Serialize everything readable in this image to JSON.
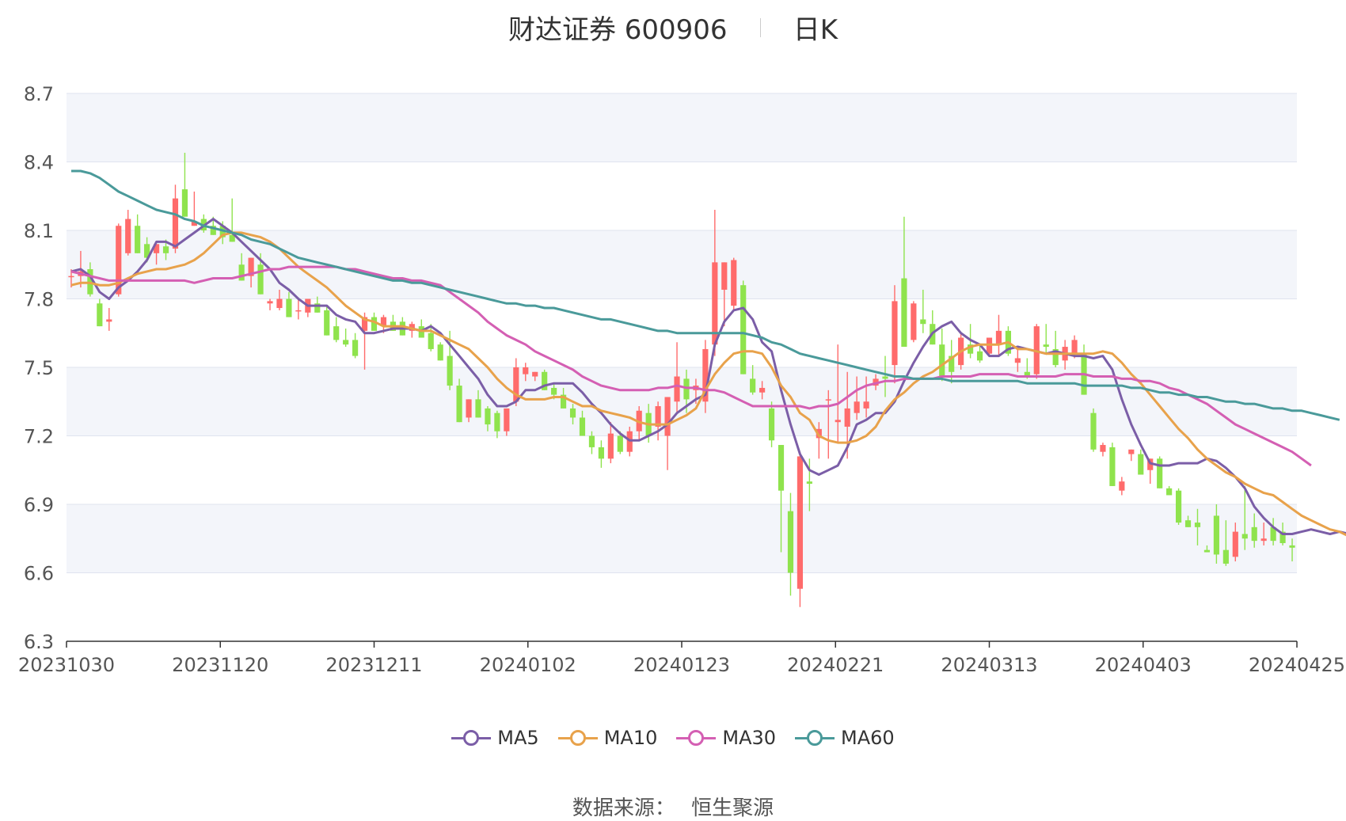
{
  "header": {
    "title": "财达证券 600906",
    "period": "日K"
  },
  "source": {
    "label": "数据来源：",
    "value": "恒生聚源"
  },
  "chart_data": {
    "type": "candlestick",
    "title": "财达证券 600906",
    "subtitle": "日K",
    "ylim": [
      6.3,
      8.7
    ],
    "y_ticks": [
      "6.3",
      "6.6",
      "6.9",
      "7.2",
      "7.5",
      "7.8",
      "8.1",
      "8.4",
      "8.7"
    ],
    "x_tick_labels": [
      "20231030",
      "20231120",
      "20231211",
      "20240102",
      "20240123",
      "20240221",
      "20240313",
      "20240403",
      "20240425"
    ],
    "grid": true,
    "legend_position": "bottom",
    "colors": {
      "up": "#ff6b6b",
      "down": "#8fe34d",
      "grid": "#dfe3ef",
      "band": "#f3f5fa"
    },
    "candles_ohlc": [
      [
        7.9,
        7.93,
        7.85,
        7.9
      ],
      [
        7.9,
        8.01,
        7.85,
        7.92
      ],
      [
        7.93,
        7.96,
        7.81,
        7.82
      ],
      [
        7.78,
        7.8,
        7.68,
        7.68
      ],
      [
        7.7,
        7.76,
        7.66,
        7.71
      ],
      [
        7.82,
        8.13,
        7.81,
        8.12
      ],
      [
        8.0,
        8.19,
        7.99,
        8.15
      ],
      [
        8.12,
        8.17,
        8.0,
        8.0
      ],
      [
        8.04,
        8.07,
        7.96,
        7.98
      ],
      [
        8.0,
        8.04,
        7.95,
        8.04
      ],
      [
        8.03,
        8.06,
        7.97,
        8.0
      ],
      [
        8.02,
        8.3,
        8.0,
        8.24
      ],
      [
        8.28,
        8.44,
        8.16,
        8.16
      ],
      [
        8.12,
        8.27,
        8.12,
        8.14
      ],
      [
        8.15,
        8.17,
        8.09,
        8.1
      ],
      [
        8.12,
        8.16,
        8.08,
        8.08
      ],
      [
        8.12,
        8.14,
        8.04,
        8.07
      ],
      [
        8.08,
        8.24,
        8.06,
        8.05
      ],
      [
        7.95,
        8.0,
        7.88,
        7.88
      ],
      [
        7.9,
        7.98,
        7.85,
        7.98
      ],
      [
        7.95,
        8.0,
        7.82,
        7.82
      ],
      [
        7.78,
        7.8,
        7.75,
        7.79
      ],
      [
        7.76,
        7.84,
        7.75,
        7.8
      ],
      [
        7.8,
        7.83,
        7.72,
        7.72
      ],
      [
        7.75,
        7.8,
        7.71,
        7.75
      ],
      [
        7.74,
        7.8,
        7.72,
        7.8
      ],
      [
        7.78,
        7.81,
        7.74,
        7.74
      ],
      [
        7.75,
        7.77,
        7.64,
        7.64
      ],
      [
        7.68,
        7.72,
        7.61,
        7.62
      ],
      [
        7.62,
        7.67,
        7.59,
        7.6
      ],
      [
        7.62,
        7.65,
        7.54,
        7.55
      ],
      [
        7.66,
        7.74,
        7.49,
        7.72
      ],
      [
        7.72,
        7.74,
        7.66,
        7.66
      ],
      [
        7.68,
        7.73,
        7.65,
        7.72
      ],
      [
        7.7,
        7.73,
        7.66,
        7.66
      ],
      [
        7.7,
        7.72,
        7.64,
        7.64
      ],
      [
        7.66,
        7.7,
        7.63,
        7.69
      ],
      [
        7.68,
        7.71,
        7.63,
        7.63
      ],
      [
        7.65,
        7.69,
        7.57,
        7.58
      ],
      [
        7.6,
        7.61,
        7.53,
        7.53
      ],
      [
        7.55,
        7.66,
        7.4,
        7.42
      ],
      [
        7.42,
        7.45,
        7.3,
        7.26
      ],
      [
        7.28,
        7.36,
        7.26,
        7.36
      ],
      [
        7.36,
        7.4,
        7.28,
        7.28
      ],
      [
        7.32,
        7.33,
        7.22,
        7.25
      ],
      [
        7.3,
        7.31,
        7.19,
        7.22
      ],
      [
        7.22,
        7.31,
        7.2,
        7.32
      ],
      [
        7.35,
        7.54,
        7.33,
        7.5
      ],
      [
        7.47,
        7.52,
        7.44,
        7.5
      ],
      [
        7.46,
        7.48,
        7.44,
        7.48
      ],
      [
        7.48,
        7.49,
        7.4,
        7.4
      ],
      [
        7.41,
        7.43,
        7.36,
        7.38
      ],
      [
        7.38,
        7.41,
        7.32,
        7.32
      ],
      [
        7.32,
        7.34,
        7.25,
        7.28
      ],
      [
        7.28,
        7.31,
        7.2,
        7.2
      ],
      [
        7.2,
        7.22,
        7.12,
        7.15
      ],
      [
        7.15,
        7.18,
        7.06,
        7.1
      ],
      [
        7.1,
        7.26,
        7.08,
        7.21
      ],
      [
        7.2,
        7.22,
        7.12,
        7.13
      ],
      [
        7.13,
        7.24,
        7.11,
        7.22
      ],
      [
        7.22,
        7.33,
        7.18,
        7.31
      ],
      [
        7.3,
        7.34,
        7.17,
        7.2
      ],
      [
        7.24,
        7.35,
        7.18,
        7.33
      ],
      [
        7.2,
        7.37,
        7.05,
        7.37
      ],
      [
        7.35,
        7.61,
        7.3,
        7.46
      ],
      [
        7.45,
        7.49,
        7.3,
        7.36
      ],
      [
        7.4,
        7.45,
        7.34,
        7.42
      ],
      [
        7.35,
        7.62,
        7.3,
        7.58
      ],
      [
        7.6,
        8.19,
        7.55,
        7.96
      ],
      [
        7.84,
        7.92,
        7.68,
        7.96
      ],
      [
        7.77,
        7.98,
        7.75,
        7.97
      ],
      [
        7.86,
        7.88,
        7.48,
        7.47
      ],
      [
        7.45,
        7.51,
        7.38,
        7.39
      ],
      [
        7.39,
        7.44,
        7.36,
        7.41
      ],
      [
        7.32,
        7.35,
        7.15,
        7.18
      ],
      [
        7.16,
        7.11,
        6.69,
        6.96
      ],
      [
        6.87,
        6.95,
        6.5,
        6.6
      ],
      [
        6.53,
        7.13,
        6.45,
        7.11
      ],
      [
        7.0,
        7.1,
        6.87,
        6.99
      ],
      [
        7.19,
        7.26,
        7.1,
        7.23
      ],
      [
        7.36,
        7.4,
        7.1,
        7.36
      ],
      [
        7.26,
        7.6,
        7.17,
        7.27
      ],
      [
        7.24,
        7.48,
        7.1,
        7.32
      ],
      [
        7.3,
        7.46,
        7.27,
        7.35
      ],
      [
        7.32,
        7.46,
        7.28,
        7.35
      ],
      [
        7.42,
        7.47,
        7.4,
        7.45
      ],
      [
        7.46,
        7.55,
        7.37,
        7.45
      ],
      [
        7.51,
        7.86,
        7.43,
        7.79
      ],
      [
        7.89,
        8.16,
        7.6,
        7.59
      ],
      [
        7.62,
        7.79,
        7.61,
        7.78
      ],
      [
        7.71,
        7.84,
        7.65,
        7.69
      ],
      [
        7.69,
        7.75,
        7.6,
        7.6
      ],
      [
        7.6,
        7.67,
        7.44,
        7.46
      ],
      [
        7.55,
        7.62,
        7.43,
        7.48
      ],
      [
        7.51,
        7.65,
        7.49,
        7.63
      ],
      [
        7.6,
        7.69,
        7.54,
        7.56
      ],
      [
        7.57,
        7.6,
        7.52,
        7.53
      ],
      [
        7.56,
        7.63,
        7.55,
        7.63
      ],
      [
        7.6,
        7.73,
        7.55,
        7.66
      ],
      [
        7.66,
        7.68,
        7.55,
        7.56
      ],
      [
        7.52,
        7.58,
        7.48,
        7.54
      ],
      [
        7.48,
        7.54,
        7.45,
        7.46
      ],
      [
        7.47,
        7.69,
        7.45,
        7.68
      ],
      [
        7.6,
        7.69,
        7.56,
        7.59
      ],
      [
        7.58,
        7.66,
        7.5,
        7.51
      ],
      [
        7.53,
        7.62,
        7.49,
        7.59
      ],
      [
        7.56,
        7.64,
        7.54,
        7.62
      ],
      [
        7.56,
        7.6,
        7.38,
        7.38
      ],
      [
        7.3,
        7.32,
        7.13,
        7.14
      ],
      [
        7.13,
        7.17,
        7.11,
        7.16
      ],
      [
        7.15,
        7.17,
        6.98,
        6.98
      ],
      [
        6.96,
        7.02,
        6.94,
        7.0
      ],
      [
        7.12,
        7.14,
        7.09,
        7.14
      ],
      [
        7.12,
        7.14,
        7.03,
        7.03
      ],
      [
        7.05,
        7.1,
        6.99,
        7.1
      ],
      [
        7.1,
        7.11,
        6.98,
        6.97
      ],
      [
        6.97,
        6.98,
        6.94,
        6.94
      ],
      [
        6.96,
        6.97,
        6.81,
        6.82
      ],
      [
        6.83,
        6.85,
        6.8,
        6.8
      ],
      [
        6.82,
        6.88,
        6.72,
        6.8
      ],
      [
        6.7,
        6.72,
        6.69,
        6.69
      ],
      [
        6.85,
        6.9,
        6.64,
        6.68
      ],
      [
        6.7,
        6.83,
        6.63,
        6.64
      ],
      [
        6.67,
        6.82,
        6.65,
        6.78
      ],
      [
        6.77,
        6.98,
        6.7,
        6.75
      ],
      [
        6.8,
        6.86,
        6.71,
        6.74
      ],
      [
        6.74,
        6.82,
        6.72,
        6.75
      ],
      [
        6.8,
        6.84,
        6.72,
        6.74
      ],
      [
        6.78,
        6.82,
        6.72,
        6.73
      ],
      [
        6.72,
        6.75,
        6.65,
        6.71
      ]
    ],
    "series": [
      {
        "name": "MA5",
        "color": "#7b5ea7",
        "values": [
          7.92,
          7.93,
          7.9,
          7.83,
          7.8,
          7.85,
          7.88,
          7.92,
          7.97,
          8.05,
          8.05,
          8.03,
          8.06,
          8.09,
          8.12,
          8.15,
          8.12,
          8.09,
          8.05,
          8.01,
          7.97,
          7.93,
          7.87,
          7.84,
          7.8,
          7.77,
          7.77,
          7.77,
          7.73,
          7.71,
          7.7,
          7.65,
          7.65,
          7.66,
          7.67,
          7.67,
          7.67,
          7.66,
          7.68,
          7.65,
          7.6,
          7.55,
          7.5,
          7.45,
          7.38,
          7.33,
          7.33,
          7.35,
          7.4,
          7.4,
          7.42,
          7.43,
          7.43,
          7.43,
          7.39,
          7.34,
          7.3,
          7.25,
          7.21,
          7.18,
          7.18,
          7.2,
          7.22,
          7.25,
          7.3,
          7.33,
          7.36,
          7.38,
          7.6,
          7.7,
          7.75,
          7.76,
          7.71,
          7.61,
          7.57,
          7.4,
          7.25,
          7.12,
          7.05,
          7.03,
          7.05,
          7.07,
          7.15,
          7.25,
          7.27,
          7.3,
          7.3,
          7.35,
          7.44,
          7.52,
          7.59,
          7.65,
          7.68,
          7.7,
          7.65,
          7.62,
          7.6,
          7.55,
          7.55,
          7.58,
          7.59,
          7.58,
          7.57,
          7.56,
          7.57,
          7.56,
          7.55,
          7.55,
          7.54,
          7.55,
          7.49,
          7.36,
          7.25,
          7.16,
          7.08,
          7.07,
          7.07,
          7.08,
          7.08,
          7.08,
          7.1,
          7.09,
          7.06,
          7.02,
          6.97,
          6.89,
          6.84,
          6.8,
          6.77,
          6.77,
          6.78,
          6.79,
          6.78,
          6.77,
          6.78,
          6.77,
          6.75
        ]
      },
      {
        "name": "MA10",
        "color": "#e8a24b",
        "values": [
          7.86,
          7.87,
          7.87,
          7.86,
          7.86,
          7.87,
          7.89,
          7.91,
          7.92,
          7.93,
          7.93,
          7.94,
          7.95,
          7.97,
          8.0,
          8.04,
          8.08,
          8.09,
          8.09,
          8.08,
          8.07,
          8.05,
          8.02,
          7.98,
          7.94,
          7.91,
          7.88,
          7.85,
          7.81,
          7.77,
          7.74,
          7.71,
          7.7,
          7.68,
          7.68,
          7.68,
          7.67,
          7.66,
          7.66,
          7.64,
          7.62,
          7.6,
          7.58,
          7.54,
          7.5,
          7.45,
          7.41,
          7.38,
          7.36,
          7.36,
          7.36,
          7.37,
          7.37,
          7.35,
          7.33,
          7.33,
          7.31,
          7.3,
          7.29,
          7.28,
          7.26,
          7.25,
          7.25,
          7.25,
          7.27,
          7.29,
          7.32,
          7.4,
          7.47,
          7.52,
          7.56,
          7.57,
          7.57,
          7.56,
          7.5,
          7.42,
          7.37,
          7.3,
          7.27,
          7.2,
          7.18,
          7.17,
          7.17,
          7.18,
          7.2,
          7.24,
          7.31,
          7.36,
          7.39,
          7.43,
          7.46,
          7.48,
          7.51,
          7.54,
          7.57,
          7.59,
          7.6,
          7.6,
          7.6,
          7.61,
          7.58,
          7.58,
          7.57,
          7.56,
          7.56,
          7.56,
          7.56,
          7.56,
          7.56,
          7.57,
          7.56,
          7.52,
          7.47,
          7.43,
          7.38,
          7.33,
          7.28,
          7.23,
          7.19,
          7.14,
          7.1,
          7.07,
          7.04,
          7.02,
          6.99,
          6.97,
          6.95,
          6.94,
          6.91,
          6.88,
          6.85,
          6.83,
          6.81,
          6.79,
          6.78,
          6.76,
          6.75
        ]
      },
      {
        "name": "MA30",
        "color": "#d45fb3",
        "values": [
          7.92,
          7.91,
          7.9,
          7.89,
          7.88,
          7.88,
          7.88,
          7.88,
          7.88,
          7.88,
          7.88,
          7.88,
          7.88,
          7.87,
          7.88,
          7.89,
          7.89,
          7.89,
          7.9,
          7.91,
          7.92,
          7.93,
          7.93,
          7.94,
          7.94,
          7.94,
          7.94,
          7.94,
          7.94,
          7.93,
          7.93,
          7.92,
          7.91,
          7.9,
          7.89,
          7.89,
          7.88,
          7.88,
          7.87,
          7.86,
          7.83,
          7.8,
          7.77,
          7.74,
          7.7,
          7.67,
          7.64,
          7.62,
          7.6,
          7.57,
          7.55,
          7.53,
          7.51,
          7.49,
          7.46,
          7.44,
          7.42,
          7.41,
          7.4,
          7.4,
          7.4,
          7.4,
          7.41,
          7.41,
          7.42,
          7.41,
          7.41,
          7.4,
          7.4,
          7.39,
          7.37,
          7.35,
          7.33,
          7.33,
          7.33,
          7.33,
          7.33,
          7.33,
          7.32,
          7.33,
          7.33,
          7.34,
          7.37,
          7.4,
          7.42,
          7.43,
          7.44,
          7.44,
          7.45,
          7.45,
          7.45,
          7.45,
          7.46,
          7.46,
          7.46,
          7.46,
          7.47,
          7.47,
          7.47,
          7.47,
          7.46,
          7.46,
          7.46,
          7.46,
          7.46,
          7.47,
          7.47,
          7.47,
          7.46,
          7.46,
          7.46,
          7.45,
          7.45,
          7.44,
          7.44,
          7.43,
          7.41,
          7.4,
          7.38,
          7.36,
          7.34,
          7.31,
          7.28,
          7.25,
          7.23,
          7.21,
          7.19,
          7.17,
          7.15,
          7.13,
          7.1,
          7.07
        ]
      },
      {
        "name": "MA60",
        "color": "#4a9a9a",
        "values": [
          8.36,
          8.36,
          8.35,
          8.33,
          8.3,
          8.27,
          8.25,
          8.23,
          8.21,
          8.19,
          8.18,
          8.17,
          8.15,
          8.14,
          8.12,
          8.11,
          8.1,
          8.09,
          8.08,
          8.06,
          8.05,
          8.04,
          8.02,
          8.0,
          7.98,
          7.97,
          7.96,
          7.95,
          7.94,
          7.93,
          7.92,
          7.91,
          7.9,
          7.89,
          7.88,
          7.88,
          7.87,
          7.87,
          7.86,
          7.85,
          7.84,
          7.83,
          7.82,
          7.81,
          7.8,
          7.79,
          7.78,
          7.78,
          7.77,
          7.77,
          7.76,
          7.76,
          7.75,
          7.74,
          7.73,
          7.72,
          7.71,
          7.71,
          7.7,
          7.69,
          7.68,
          7.67,
          7.66,
          7.66,
          7.65,
          7.65,
          7.65,
          7.65,
          7.65,
          7.65,
          7.65,
          7.65,
          7.64,
          7.63,
          7.61,
          7.6,
          7.58,
          7.56,
          7.55,
          7.54,
          7.53,
          7.52,
          7.51,
          7.5,
          7.49,
          7.48,
          7.47,
          7.46,
          7.46,
          7.45,
          7.45,
          7.45,
          7.45,
          7.44,
          7.44,
          7.44,
          7.44,
          7.44,
          7.44,
          7.44,
          7.44,
          7.43,
          7.43,
          7.43,
          7.43,
          7.43,
          7.43,
          7.42,
          7.42,
          7.42,
          7.42,
          7.42,
          7.41,
          7.41,
          7.4,
          7.39,
          7.39,
          7.38,
          7.38,
          7.37,
          7.37,
          7.36,
          7.35,
          7.35,
          7.34,
          7.34,
          7.33,
          7.32,
          7.32,
          7.31,
          7.31,
          7.3,
          7.29,
          7.28,
          7.27
        ]
      }
    ]
  }
}
